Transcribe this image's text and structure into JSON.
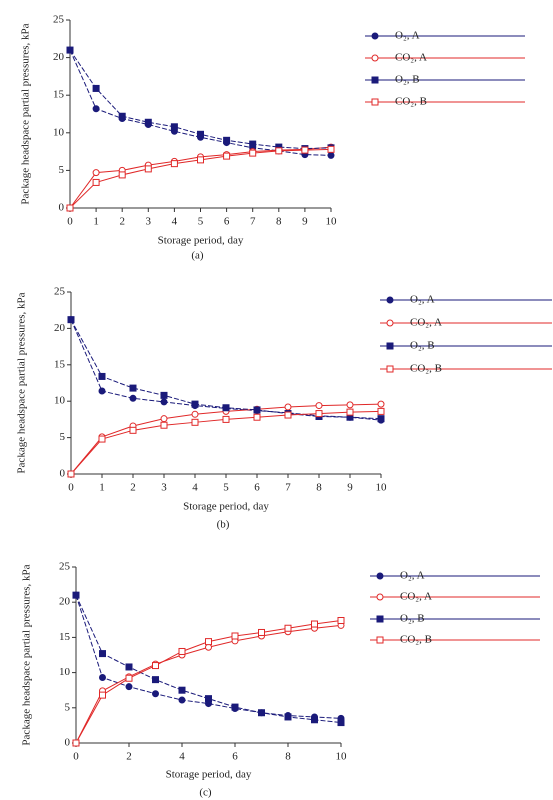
{
  "chart_data": [
    {
      "type": "line",
      "caption": "(a)",
      "y_label": "Package headspace partial pressures, kPa",
      "x_label": "Storage period, day",
      "x": [
        0,
        1,
        2,
        3,
        4,
        5,
        6,
        7,
        8,
        9,
        10
      ],
      "xlim": [
        0,
        10
      ],
      "xticks": [
        0,
        1,
        2,
        3,
        4,
        5,
        6,
        7,
        8,
        9,
        10
      ],
      "ylim": [
        0,
        25
      ],
      "yticks": [
        0,
        5,
        10,
        15,
        20,
        25
      ],
      "series": [
        {
          "name": "O₂, A",
          "color": "#1a1a7a",
          "marker": "circle",
          "filled": true,
          "values": [
            21,
            13.2,
            11.9,
            11.1,
            10.2,
            9.4,
            8.7,
            8.0,
            7.6,
            7.1,
            7.0
          ]
        },
        {
          "name": "CO₂, A",
          "color": "#e02828",
          "marker": "circle",
          "filled": false,
          "values": [
            0,
            4.7,
            5.0,
            5.7,
            6.2,
            6.8,
            7.1,
            7.5,
            7.7,
            7.8,
            8.1
          ]
        },
        {
          "name": "O₂, B",
          "color": "#1a1a7a",
          "marker": "square",
          "filled": true,
          "values": [
            21,
            15.9,
            12.2,
            11.4,
            10.8,
            9.8,
            9.0,
            8.5,
            8.1,
            7.9,
            8.0
          ]
        },
        {
          "name": "CO₂, B",
          "color": "#e02828",
          "marker": "square",
          "filled": false,
          "values": [
            0,
            3.4,
            4.4,
            5.2,
            5.9,
            6.4,
            6.9,
            7.3,
            7.6,
            7.7,
            7.8
          ]
        }
      ]
    },
    {
      "type": "line",
      "caption": "(b)",
      "y_label": "Package headspace partial pressures, kPa",
      "x_label": "Storage period, day",
      "x": [
        0,
        1,
        2,
        3,
        4,
        5,
        6,
        7,
        8,
        9,
        10
      ],
      "xlim": [
        0,
        10
      ],
      "xticks": [
        0,
        1,
        2,
        3,
        4,
        5,
        6,
        7,
        8,
        9,
        10
      ],
      "ylim": [
        0,
        25
      ],
      "yticks": [
        0,
        5,
        10,
        15,
        20,
        25
      ],
      "series": [
        {
          "name": "O₂, A",
          "color": "#1a1a7a",
          "marker": "circle",
          "filled": true,
          "values": [
            21.2,
            11.4,
            10.4,
            9.9,
            9.4,
            9.0,
            8.7,
            8.4,
            8.0,
            7.8,
            7.4
          ]
        },
        {
          "name": "CO₂, A",
          "color": "#e02828",
          "marker": "circle",
          "filled": false,
          "values": [
            0,
            5.1,
            6.6,
            7.6,
            8.2,
            8.6,
            8.9,
            9.2,
            9.4,
            9.5,
            9.6
          ]
        },
        {
          "name": "O₂, B",
          "color": "#1a1a7a",
          "marker": "square",
          "filled": true,
          "values": [
            21.2,
            13.4,
            11.8,
            10.8,
            9.6,
            9.1,
            8.8,
            8.3,
            7.9,
            7.8,
            7.6
          ]
        },
        {
          "name": "CO₂, B",
          "color": "#e02828",
          "marker": "square",
          "filled": false,
          "values": [
            0,
            4.8,
            6.0,
            6.7,
            7.1,
            7.5,
            7.8,
            8.1,
            8.3,
            8.5,
            8.6
          ]
        }
      ]
    },
    {
      "type": "line",
      "caption": "(c)",
      "y_label": "Package headspace partial pressures, kPa",
      "x_label": "Storage period, day",
      "x": [
        0,
        1,
        2,
        3,
        4,
        5,
        6,
        7,
        8,
        9,
        10
      ],
      "xlim": [
        0,
        10
      ],
      "xticks": [
        0,
        2,
        4,
        6,
        8,
        10
      ],
      "ylim": [
        0,
        25
      ],
      "yticks": [
        0,
        5,
        10,
        15,
        20,
        25
      ],
      "series": [
        {
          "name": "O₂, A",
          "color": "#1a1a7a",
          "marker": "circle",
          "filled": true,
          "values": [
            21,
            9.3,
            8.0,
            7.0,
            6.1,
            5.6,
            4.9,
            4.3,
            3.9,
            3.7,
            3.5
          ]
        },
        {
          "name": "CO₂, A",
          "color": "#e02828",
          "marker": "circle",
          "filled": false,
          "values": [
            0,
            7.4,
            9.4,
            11.2,
            12.5,
            13.6,
            14.5,
            15.2,
            15.8,
            16.3,
            16.7
          ]
        },
        {
          "name": "O₂, B",
          "color": "#1a1a7a",
          "marker": "square",
          "filled": true,
          "values": [
            21,
            12.7,
            10.8,
            9.0,
            7.5,
            6.3,
            5.1,
            4.3,
            3.7,
            3.3,
            2.9
          ]
        },
        {
          "name": "CO₂, B",
          "color": "#e02828",
          "marker": "square",
          "filled": false,
          "values": [
            0,
            6.8,
            9.2,
            11.0,
            13.0,
            14.4,
            15.2,
            15.7,
            16.3,
            16.9,
            17.4
          ]
        }
      ]
    }
  ]
}
